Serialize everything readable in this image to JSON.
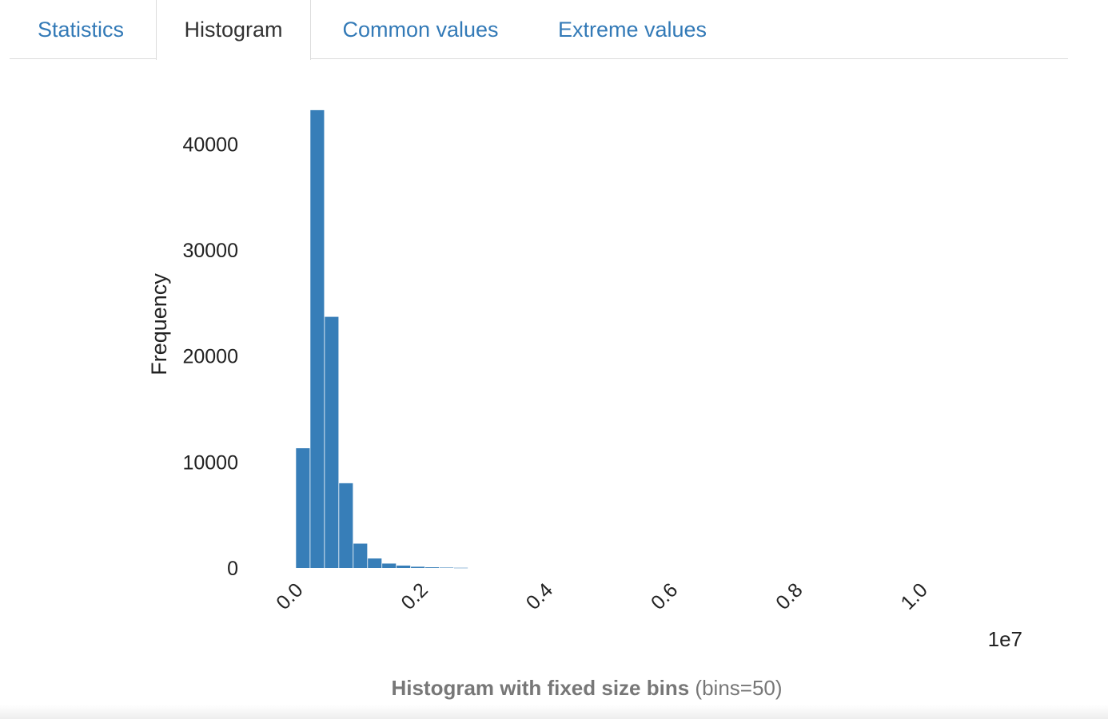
{
  "tabs": [
    {
      "label": "Statistics",
      "active": false
    },
    {
      "label": "Histogram",
      "active": true
    },
    {
      "label": "Common values",
      "active": false
    },
    {
      "label": "Extreme values",
      "active": false
    }
  ],
  "caption": {
    "bold": "Histogram with fixed size bins",
    "normal": "(bins=50)"
  },
  "colors": {
    "link": "#337ab7",
    "bar": "#377eb8",
    "active_tab_text": "#333333"
  },
  "chart_data": {
    "type": "bar",
    "title": "",
    "xlabel": "",
    "ylabel": "Frequency",
    "x_offset_label": "1e7",
    "x_scale": 10000000,
    "xlim": [
      -900000,
      11900000
    ],
    "ylim": [
      0,
      45000
    ],
    "bin_width": 230000,
    "x_ticks": [
      0.0,
      0.2,
      0.4,
      0.6,
      0.8,
      1.0
    ],
    "x_tick_labels": [
      "0.0",
      "0.2",
      "0.4",
      "0.6",
      "0.8",
      "1.0"
    ],
    "y_ticks": [
      0,
      10000,
      20000,
      30000,
      40000
    ],
    "y_tick_labels": [
      "0",
      "10000",
      "20000",
      "30000",
      "40000"
    ],
    "grid": false,
    "bins": [
      {
        "x0": 0,
        "count": 11300
      },
      {
        "x0": 230000,
        "count": 43200
      },
      {
        "x0": 460000,
        "count": 23700
      },
      {
        "x0": 690000,
        "count": 8000
      },
      {
        "x0": 920000,
        "count": 2300
      },
      {
        "x0": 1150000,
        "count": 900
      },
      {
        "x0": 1380000,
        "count": 420
      },
      {
        "x0": 1610000,
        "count": 230
      },
      {
        "x0": 1840000,
        "count": 120
      },
      {
        "x0": 2070000,
        "count": 70
      },
      {
        "x0": 2300000,
        "count": 40
      },
      {
        "x0": 2530000,
        "count": 20
      }
    ]
  }
}
